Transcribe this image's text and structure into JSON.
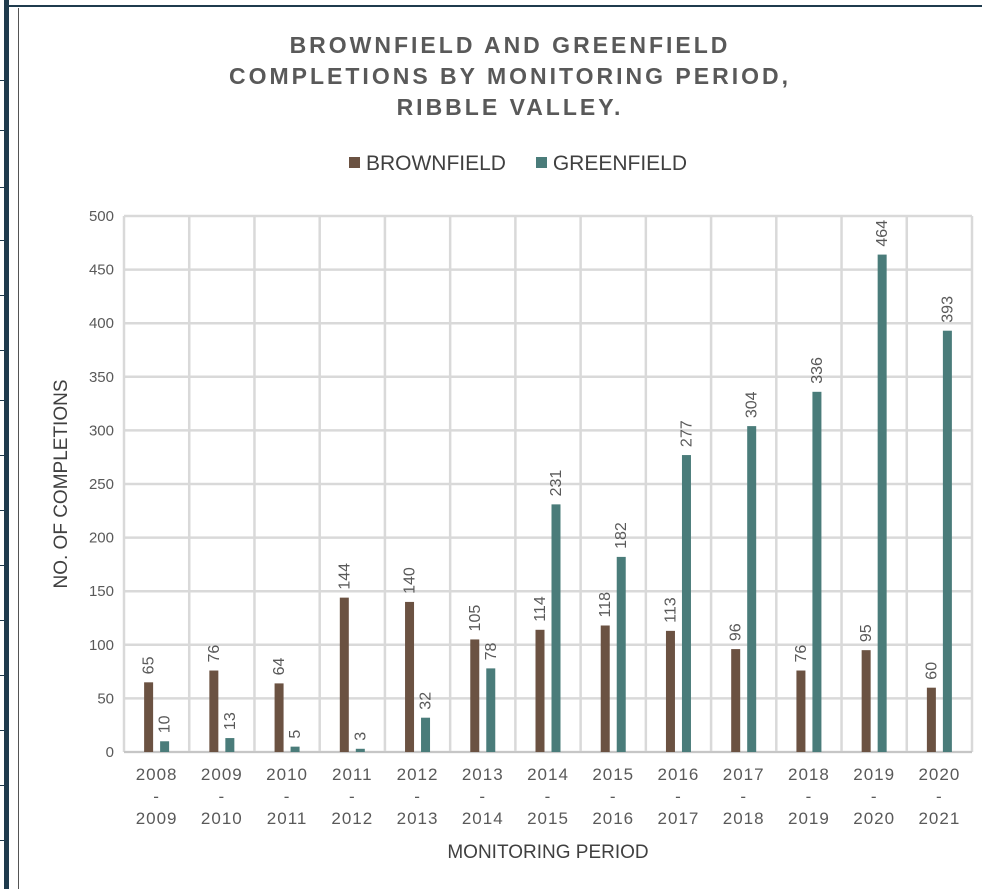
{
  "chart_data": {
    "type": "bar",
    "title": "BROWNFIELD AND GREENFIELD\nCOMPLETIONS BY MONITORING PERIOD,\nRIBBLE VALLEY.",
    "xlabel": "MONITORING PERIOD",
    "ylabel": "NO. OF COMPLETIONS",
    "ylim": [
      0,
      500
    ],
    "yticks": [
      0,
      50,
      100,
      150,
      200,
      250,
      300,
      350,
      400,
      450,
      500
    ],
    "grid": true,
    "legend_position": "top",
    "categories": [
      "2008 - 2009",
      "2009 - 2010",
      "2010 - 2011",
      "2011 - 2012",
      "2012 - 2013",
      "2013 - 2014",
      "2014 - 2015",
      "2015 - 2016",
      "2016 - 2017",
      "2017 - 2018",
      "2018 - 2019",
      "2019 - 2020",
      "2020 - 2021"
    ],
    "series": [
      {
        "name": "BROWNFIELD",
        "color": "#6b5242",
        "values": [
          65,
          76,
          64,
          144,
          140,
          105,
          114,
          118,
          113,
          96,
          76,
          95,
          60
        ]
      },
      {
        "name": "GREENFIELD",
        "color": "#4a7c7a",
        "values": [
          10,
          13,
          5,
          3,
          32,
          78,
          231,
          182,
          277,
          304,
          336,
          464,
          393
        ]
      }
    ]
  }
}
